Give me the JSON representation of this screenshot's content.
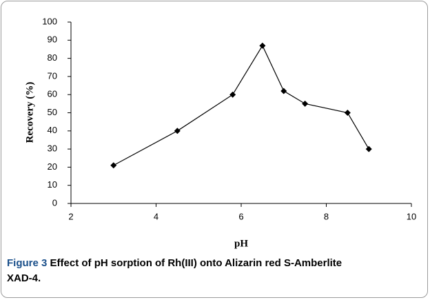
{
  "chart_data": {
    "type": "line",
    "xlabel": "pH",
    "ylabel": "Recovery (%)",
    "x": [
      3,
      4.5,
      5.8,
      6.5,
      7,
      7.5,
      8.5,
      9
    ],
    "values": [
      21,
      40,
      60,
      87,
      62,
      55,
      50,
      30
    ],
    "color": "#000000",
    "xlim": [
      2,
      10
    ],
    "xticks": [
      2,
      4,
      6,
      8,
      10
    ],
    "ylim": [
      0,
      100
    ],
    "yticks": [
      0,
      10,
      20,
      30,
      40,
      50,
      60,
      70,
      80,
      90,
      100
    ],
    "grid": false
  },
  "caption": {
    "label": "Figure 3",
    "text": "Effect of pH sorption of Rh(III) onto Alizarin red S-Amberlite XAD-4."
  }
}
